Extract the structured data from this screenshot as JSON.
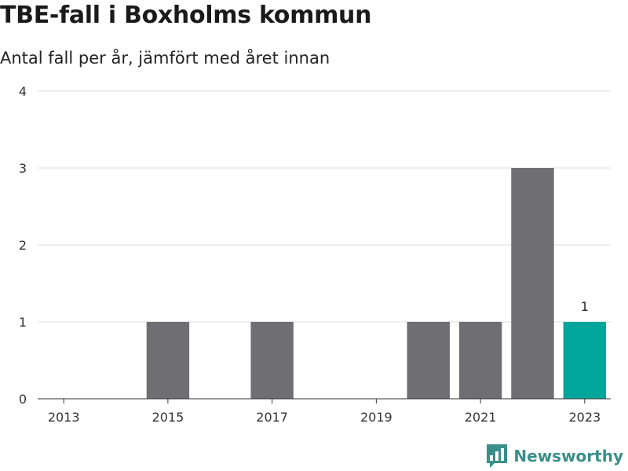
{
  "brand": {
    "name": "Newsworthy",
    "logo_icon": "newsworthy-bar-logo-icon"
  },
  "colors": {
    "bar": "#6e6e73",
    "highlight": "#00a59b",
    "grid": "#dddddd",
    "brand": "#3a8f8a"
  },
  "chart_data": {
    "type": "bar",
    "title": "TBE-fall i Boxholms kommun",
    "subtitle": "Antal fall per år, jämfört med året innan",
    "xlabel": "",
    "ylabel": "",
    "categories": [
      "2013",
      "2014",
      "2015",
      "2016",
      "2017",
      "2018",
      "2019",
      "2020",
      "2021",
      "2022",
      "2023"
    ],
    "values": [
      0,
      0,
      1,
      0,
      1,
      0,
      0,
      1,
      1,
      3,
      1
    ],
    "x_tick_labels": [
      "2013",
      "2015",
      "2017",
      "2019",
      "2021",
      "2023"
    ],
    "y_ticks": [
      0,
      1,
      2,
      3,
      4
    ],
    "ylim": [
      0,
      4
    ],
    "grid": true,
    "highlight_category": "2023",
    "data_labels": [
      {
        "category": "2023",
        "text": "1"
      }
    ]
  }
}
